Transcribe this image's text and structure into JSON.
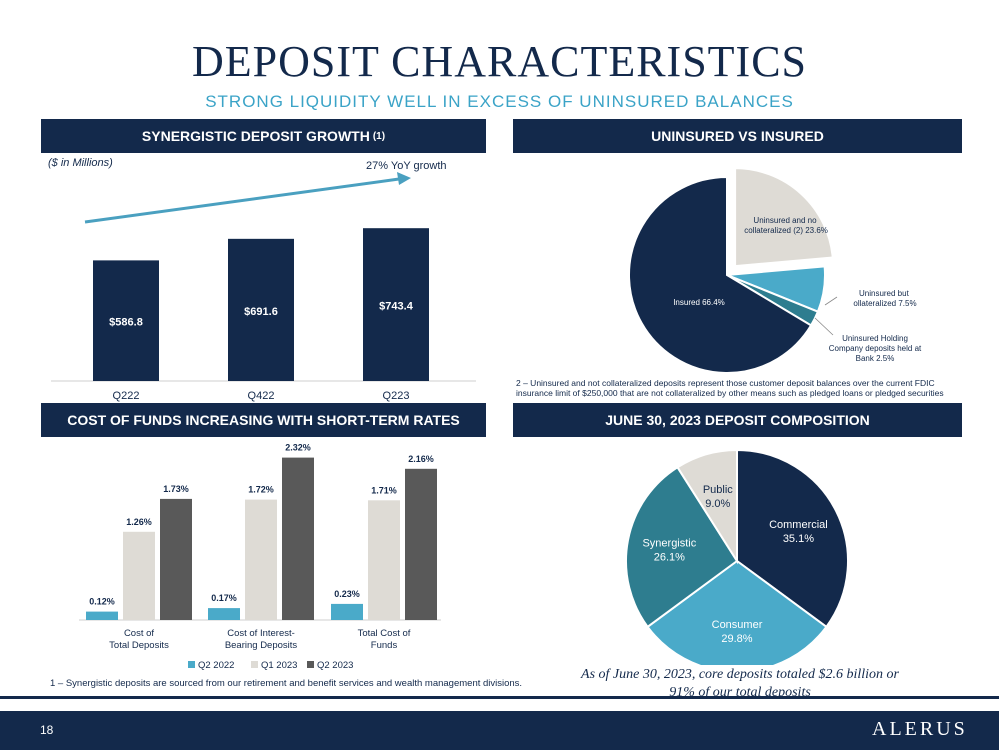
{
  "title": "DEPOSIT CHARACTERISTICS",
  "subtitle": "STRONG LIQUIDITY WELL IN EXCESS OF UNINSURED BALANCES",
  "panels": {
    "growth": {
      "title": "SYNERGISTIC DEPOSIT GROWTH",
      "sup": "(1)"
    },
    "uninsured": {
      "title": "UNINSURED VS INSURED"
    },
    "cost": {
      "title": "COST OF FUNDS INCREASING WITH SHORT-TERM RATES"
    },
    "composition": {
      "title": "JUNE 30, 2023 DEPOSIT COMPOSITION"
    }
  },
  "units_label": "($ in Millions)",
  "growth_annotation": "27% YoY growth",
  "footnotes": {
    "uninsured": "2 – Uninsured and not collateralized deposits represent those customer deposit balances over the current FDIC insurance limit of $250,000 that are not collateralized by other means such as pledged loans or pledged securities",
    "synergistic": "1 – Synergistic deposits are sourced from our retirement and benefit services and wealth management divisions."
  },
  "core_deposits_note": "As of June 30, 2023, core deposits totaled $2.6 billion or 91% of our total deposits",
  "page_number": "18",
  "logo_text": "ALERUS",
  "colors": {
    "navy": "#13294b",
    "light_blue": "#4aaac9",
    "teal": "#2e7d8f",
    "light_gray": "#dedbd5",
    "dark_gray": "#595959"
  },
  "chart_data": [
    {
      "type": "bar",
      "categories": [
        "Q222",
        "Q422",
        "Q223"
      ],
      "values": [
        586.8,
        691.6,
        743.4
      ],
      "value_labels": [
        "$586.8",
        "$691.6",
        "$743.4"
      ],
      "ylim": [
        0,
        900
      ]
    },
    {
      "type": "pie",
      "slices": [
        {
          "label": "Uninsured and not collateralized (2) 23.6%",
          "value": 23.6,
          "exploded": true
        },
        {
          "label": "Uninsured but collateralized 7.5%",
          "value": 7.5
        },
        {
          "label": "Uninsured Holding Company deposits held at Bank 2.5%",
          "value": 2.5
        },
        {
          "label": "Insured 66.4%",
          "value": 66.4
        }
      ]
    },
    {
      "type": "bar",
      "categories": [
        "Cost of Total Deposits",
        "Cost of Interest-Bearing Deposits",
        "Total Cost of Funds"
      ],
      "series": [
        {
          "name": "Q2 2022",
          "values": [
            0.12,
            0.17,
            0.23
          ],
          "labels": [
            "0.12%",
            "0.17%",
            "0.23%"
          ]
        },
        {
          "name": "Q1 2023",
          "values": [
            1.26,
            1.72,
            1.71
          ],
          "labels": [
            "1.26%",
            "1.72%",
            "1.71%"
          ]
        },
        {
          "name": "Q2 2023",
          "values": [
            1.73,
            2.32,
            2.16
          ],
          "labels": [
            "1.73%",
            "2.32%",
            "2.16%"
          ]
        }
      ],
      "ylim": [
        0,
        2.5
      ],
      "legend": "bottom"
    },
    {
      "type": "pie",
      "slices": [
        {
          "name": "Commercial",
          "value": 35.1,
          "label": "35.1%"
        },
        {
          "name": "Consumer",
          "value": 29.8,
          "label": "29.8%"
        },
        {
          "name": "Synergistic",
          "value": 26.1,
          "label": "26.1%"
        },
        {
          "name": "Public",
          "value": 9.0,
          "label": "9.0%"
        }
      ]
    }
  ]
}
